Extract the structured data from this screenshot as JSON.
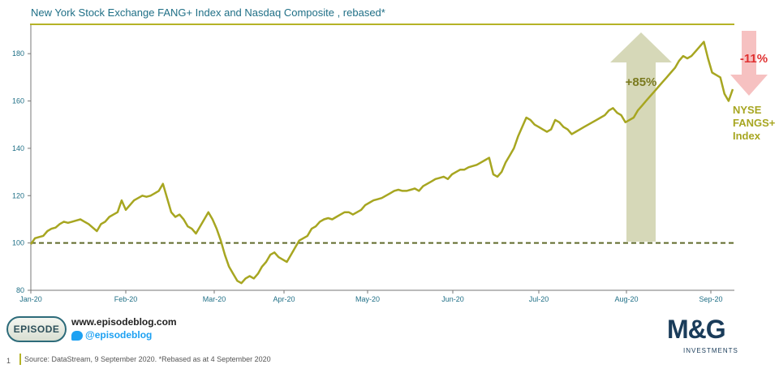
{
  "title": "New York Stock Exchange FANG+ Index and Nasdaq Composite , rebased*",
  "colors": {
    "series": "#a7a621",
    "baseline": "#5f6a2a",
    "axis_text": "#1f6f86",
    "up_arrow": "#d6d8b8",
    "up_text": "#7a7a1f",
    "down_arrow": "#f6c1c1",
    "down_text": "#e03131",
    "series_label": "#a7a621"
  },
  "annotations": {
    "up": "+85%",
    "down": "-11%",
    "series_label_lines": [
      "NYSE",
      "FANGS+",
      "Index"
    ]
  },
  "chart_data": {
    "type": "line",
    "title": "New York Stock Exchange FANG+ Index and Nasdaq Composite , rebased*",
    "xlabel": "",
    "ylabel": "",
    "ylim": [
      80,
      190
    ],
    "yticks": [
      80,
      100,
      120,
      140,
      160,
      180
    ],
    "xticks": [
      "Jan-20",
      "Feb-20",
      "Mar-20",
      "Apr-20",
      "May-20",
      "Jun-20",
      "Jul-20",
      "Aug-20",
      "Sep-20"
    ],
    "reference_line": 100,
    "series": [
      {
        "name": "NYSE FANGS+ Index",
        "values": [
          99.5,
          102,
          102.5,
          103,
          105,
          106,
          106.5,
          108,
          109,
          108.5,
          109,
          109.5,
          110,
          109,
          108,
          106.5,
          105,
          108,
          109,
          111,
          112,
          113,
          118,
          114,
          116,
          118,
          119,
          120,
          119.5,
          120,
          121,
          122,
          125,
          119,
          113,
          111,
          112,
          110,
          107,
          106,
          104,
          107,
          110,
          113,
          110,
          106,
          101,
          95,
          90,
          87,
          84,
          83,
          85,
          86,
          85,
          87,
          90,
          92,
          95,
          96,
          94,
          93,
          92,
          95,
          98,
          101,
          102,
          103,
          106,
          107,
          109,
          110,
          110.5,
          110,
          111,
          112,
          113,
          113,
          112,
          113,
          114,
          116,
          117,
          118,
          118.5,
          119,
          120,
          121,
          122,
          122.5,
          122,
          122,
          122.5,
          123,
          122,
          124,
          125,
          126,
          127,
          127.5,
          128,
          127,
          129,
          130,
          131,
          131,
          132,
          132.5,
          133,
          134,
          135,
          136,
          129,
          128,
          130,
          134,
          137,
          140,
          145,
          149,
          153,
          152,
          150,
          149,
          148,
          147,
          148,
          152,
          151,
          149,
          148,
          146,
          147,
          148,
          149,
          150,
          151,
          152,
          153,
          154,
          156,
          157,
          155,
          154,
          151,
          152,
          153,
          156,
          158,
          160,
          162,
          164,
          166,
          168,
          170,
          172,
          174,
          177,
          179,
          178,
          179,
          181,
          183,
          185,
          178,
          172,
          171,
          170,
          163,
          160,
          165
        ]
      }
    ]
  },
  "footer": {
    "badge": "EPISODE",
    "blog": "www.episodeblog.com",
    "twitter": "@episodeblog",
    "brand": "M&G",
    "brand_sub": "INVESTMENTS",
    "page_number": "1",
    "source": "Source: DataStream, 9 September 2020. *Rebased as at 4 September 2020"
  }
}
